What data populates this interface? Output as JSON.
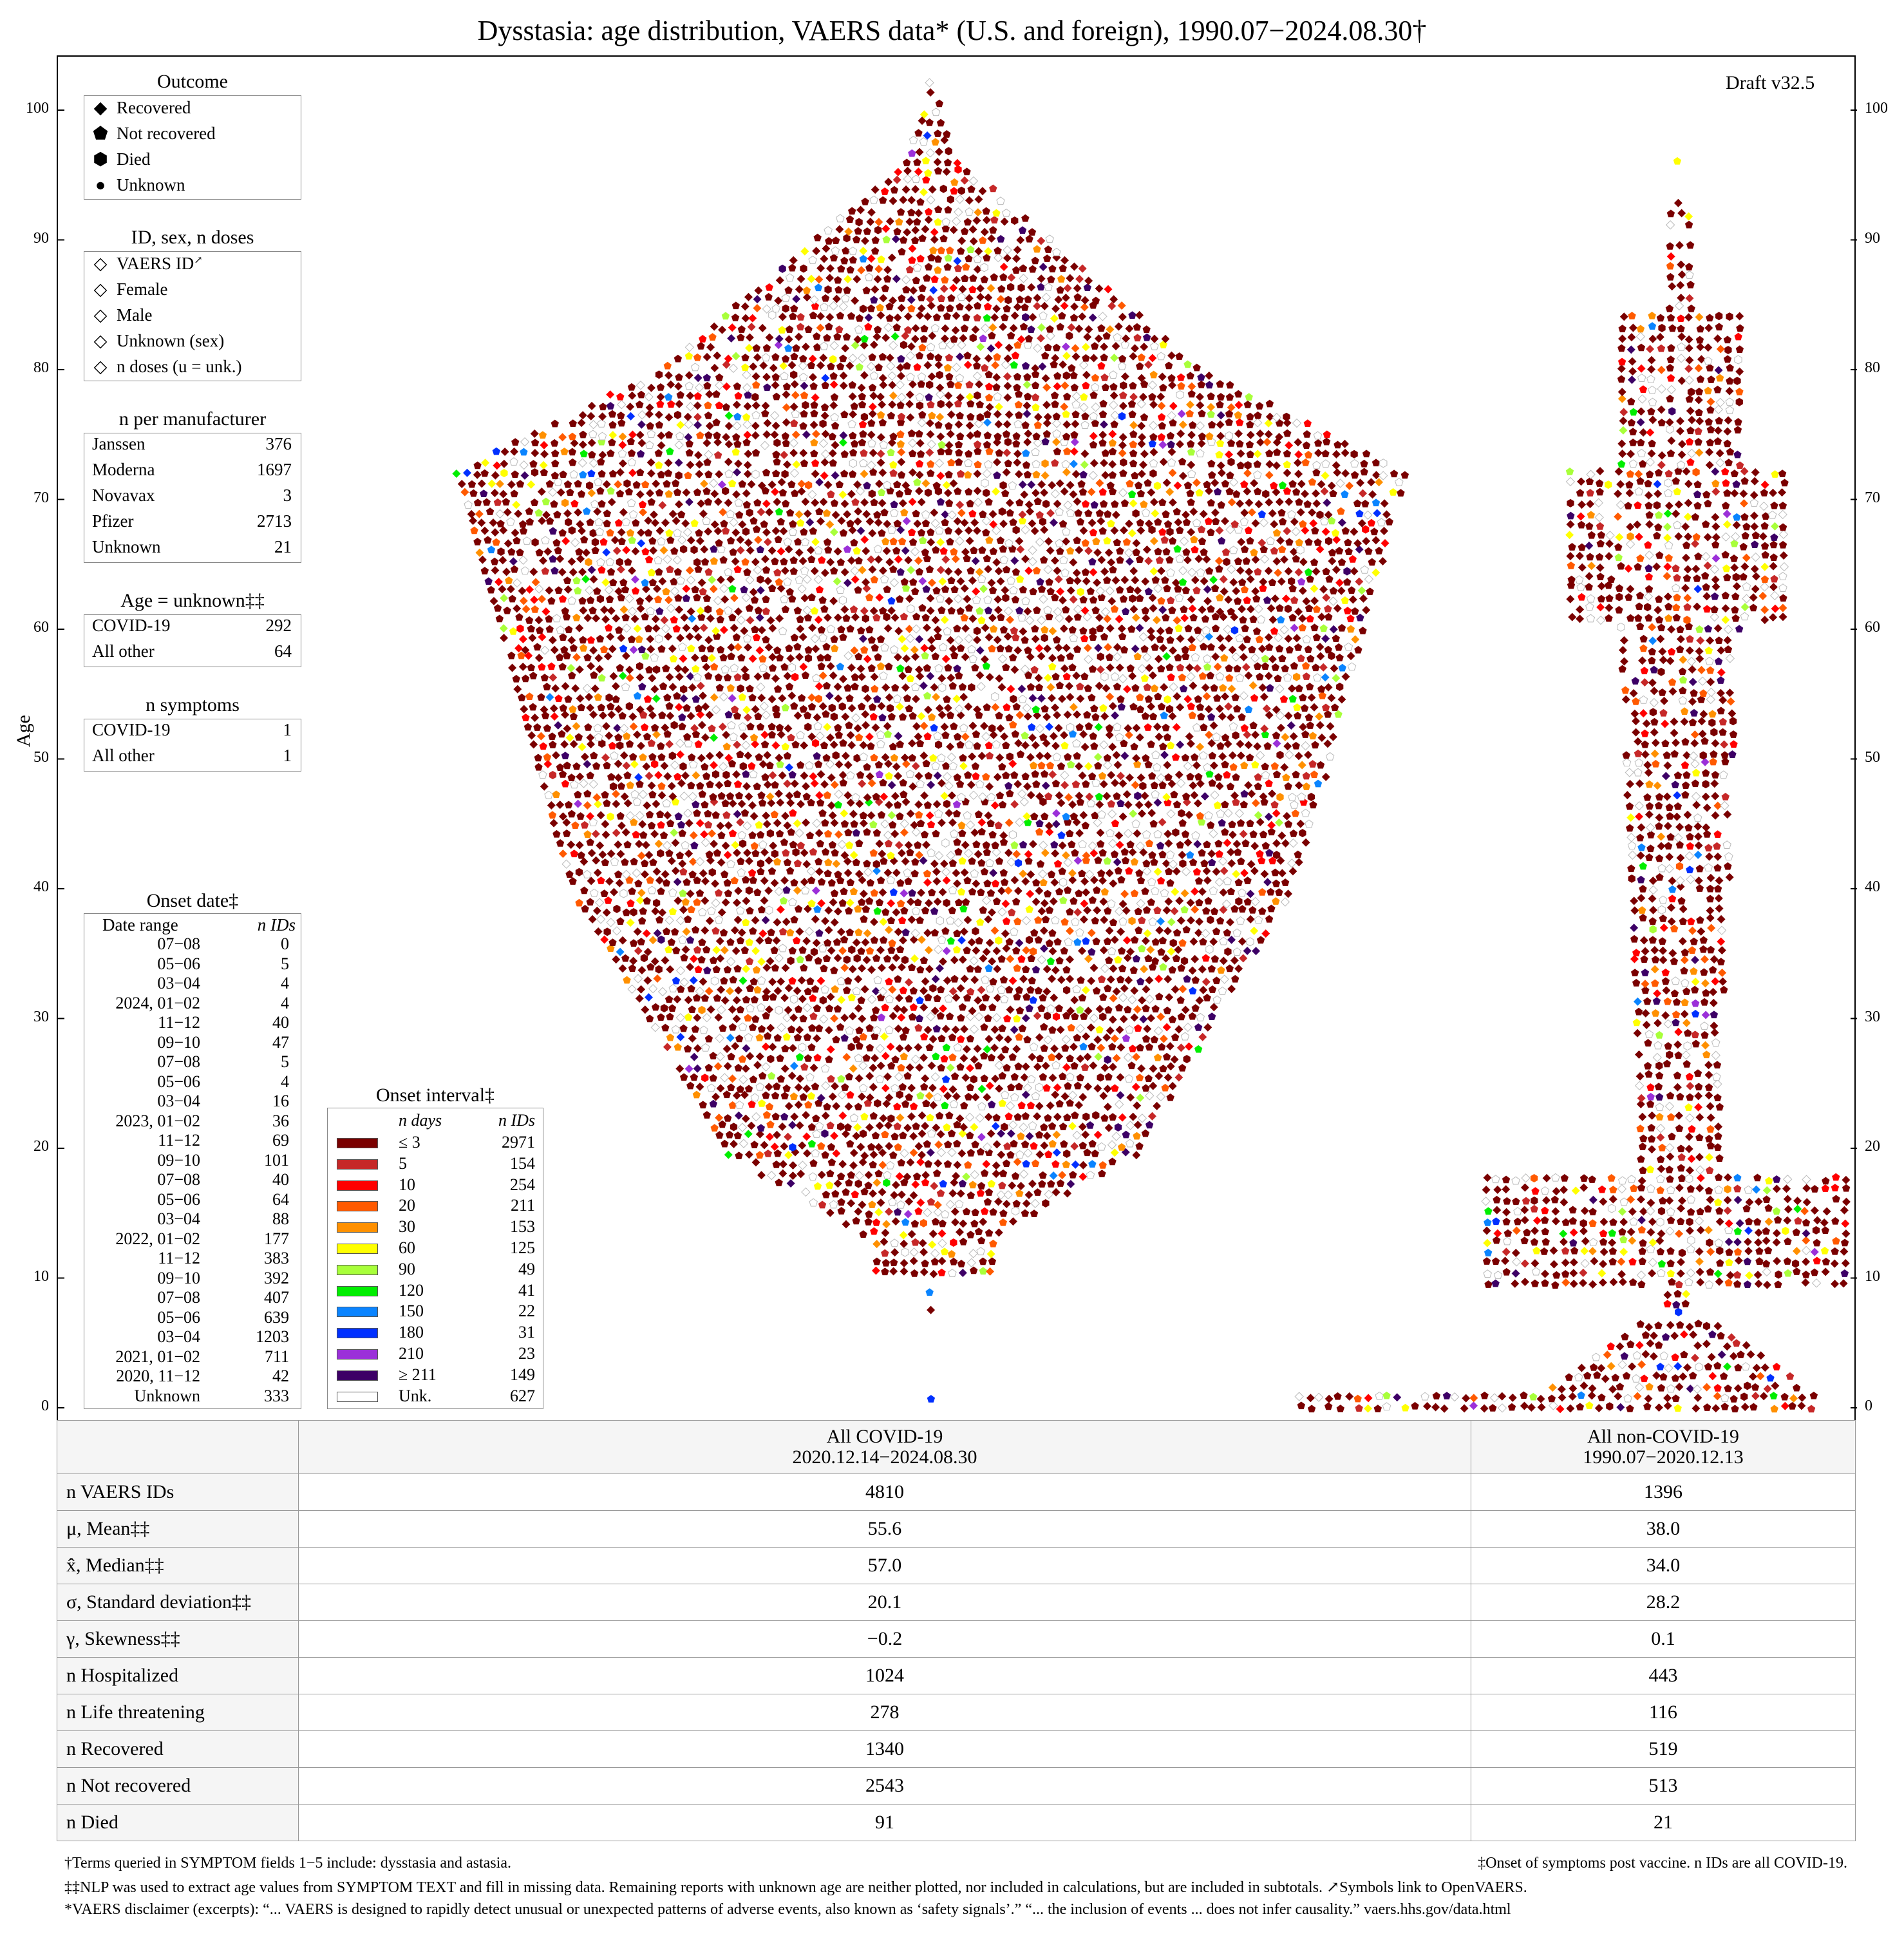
{
  "title": "Dysstasia: age distribution, VAERS data* (U.S. and foreign), 1990.07−2024.08.30†",
  "draft": "Draft v32.5",
  "y_axis_label": "Age",
  "chart_data": {
    "type": "scatter",
    "subtype": "beeswarm",
    "ylabel": "Age",
    "ylim": [
      0,
      104
    ],
    "yticks": [
      0,
      10,
      20,
      30,
      40,
      50,
      60,
      70,
      80,
      90,
      100
    ],
    "groups": [
      {
        "name": "All COVID-19",
        "n": 4810,
        "min_age": 0,
        "max_age": 102,
        "mean": 55.6,
        "median": 57.0,
        "sd": 20.1,
        "skew": -0.2
      },
      {
        "name": "All non-COVID-19",
        "n": 1396,
        "min_age": 0,
        "max_age": 99,
        "mean": 38.0,
        "median": 34.0,
        "sd": 28.2,
        "skew": 0.1
      }
    ],
    "color_key": "Onset interval (days)"
  },
  "legend": {
    "outcome": {
      "title": "Outcome",
      "items": [
        {
          "shape": "diamond",
          "label": "Recovered"
        },
        {
          "shape": "pentagon",
          "label": "Not recovered"
        },
        {
          "shape": "hexagon",
          "label": "Died"
        },
        {
          "shape": "circle",
          "label": "Unknown"
        }
      ]
    },
    "id_sex": {
      "title": "ID, sex, n doses",
      "items": [
        {
          "label": "VAERS ID",
          "mark": "↗"
        },
        {
          "label": "Female"
        },
        {
          "label": "Male"
        },
        {
          "label": "Unknown (sex)"
        },
        {
          "label": "n doses (u = unk.)"
        }
      ]
    },
    "manufacturer": {
      "title": "n per manufacturer",
      "rows": [
        {
          "name": "Janssen",
          "n": "376"
        },
        {
          "name": "Moderna",
          "n": "1697"
        },
        {
          "name": "Novavax",
          "n": "3"
        },
        {
          "name": "Pfizer",
          "n": "2713"
        },
        {
          "name": "Unknown",
          "n": "21"
        }
      ]
    },
    "age_unknown": {
      "title": "Age = unknown‡‡",
      "rows": [
        {
          "name": "COVID-19",
          "n": "292"
        },
        {
          "name": "All other",
          "n": "64"
        }
      ]
    },
    "n_symptoms": {
      "title": "n symptoms",
      "rows": [
        {
          "name": "COVID-19",
          "n": "1"
        },
        {
          "name": "All other",
          "n": "1"
        }
      ]
    },
    "onset_date": {
      "title": "Onset date‡",
      "col1": "Date range",
      "col2": "n IDs",
      "rows": [
        {
          "range": "07−08",
          "n": "0"
        },
        {
          "range": "05−06",
          "n": "5"
        },
        {
          "range": "03−04",
          "n": "4"
        },
        {
          "range": "2024, 01−02",
          "n": "4"
        },
        {
          "range": "11−12",
          "n": "40"
        },
        {
          "range": "09−10",
          "n": "47"
        },
        {
          "range": "07−08",
          "n": "5"
        },
        {
          "range": "05−06",
          "n": "4"
        },
        {
          "range": "03−04",
          "n": "16"
        },
        {
          "range": "2023, 01−02",
          "n": "36"
        },
        {
          "range": "11−12",
          "n": "69"
        },
        {
          "range": "09−10",
          "n": "101"
        },
        {
          "range": "07−08",
          "n": "40"
        },
        {
          "range": "05−06",
          "n": "64"
        },
        {
          "range": "03−04",
          "n": "88"
        },
        {
          "range": "2022, 01−02",
          "n": "177"
        },
        {
          "range": "11−12",
          "n": "383"
        },
        {
          "range": "09−10",
          "n": "392"
        },
        {
          "range": "07−08",
          "n": "407"
        },
        {
          "range": "05−06",
          "n": "639"
        },
        {
          "range": "03−04",
          "n": "1203"
        },
        {
          "range": "2021, 01−02",
          "n": "711"
        },
        {
          "range": "2020, 11−12",
          "n": "42"
        },
        {
          "range": "Unknown",
          "n": "333"
        }
      ]
    },
    "onset_interval": {
      "title": "Onset interval‡",
      "col1": "n days",
      "col2": "n IDs",
      "rows": [
        {
          "days": "≤ 3",
          "n": "2971",
          "color": "#7a0000"
        },
        {
          "days": "5",
          "n": "154",
          "color": "#c62828"
        },
        {
          "days": "10",
          "n": "254",
          "color": "#ff0000"
        },
        {
          "days": "20",
          "n": "211",
          "color": "#ff5a00"
        },
        {
          "days": "30",
          "n": "153",
          "color": "#ff9000"
        },
        {
          "days": "60",
          "n": "125",
          "color": "#ffff00"
        },
        {
          "days": "90",
          "n": "49",
          "color": "#a8ff3a"
        },
        {
          "days": "120",
          "n": "41",
          "color": "#00ee00"
        },
        {
          "days": "150",
          "n": "22",
          "color": "#0a84ff"
        },
        {
          "days": "180",
          "n": "31",
          "color": "#0030ff"
        },
        {
          "days": "210",
          "n": "23",
          "color": "#9b30d9"
        },
        {
          "days": "≥ 211",
          "n": "149",
          "color": "#3d0066"
        },
        {
          "days": "Unk.",
          "n": "627",
          "color": "#ffffff"
        }
      ]
    }
  },
  "stats_table": {
    "col1_header": "All COVID-19",
    "col1_dates": "2020.12.14−2024.08.30",
    "col2_header": "All non-COVID-19",
    "col2_dates": "1990.07−2020.12.13",
    "rows": [
      {
        "label": "n VAERS IDs",
        "c1": "4810",
        "c2": "1396"
      },
      {
        "label": "μ, Mean‡‡",
        "c1": "55.6",
        "c2": "38.0"
      },
      {
        "label": "x̂, Median‡‡",
        "c1": "57.0",
        "c2": "34.0"
      },
      {
        "label": "σ, Standard deviation‡‡",
        "c1": "20.1",
        "c2": "28.2"
      },
      {
        "label": "γ, Skewness‡‡",
        "c1": "−0.2",
        "c2": "0.1"
      },
      {
        "label": "n Hospitalized",
        "c1": "1024",
        "c2": "443"
      },
      {
        "label": "n Life threatening",
        "c1": "278",
        "c2": "116"
      },
      {
        "label": "n Recovered",
        "c1": "1340",
        "c2": "519"
      },
      {
        "label": "n Not recovered",
        "c1": "2543",
        "c2": "513"
      },
      {
        "label": "n Died",
        "c1": "91",
        "c2": "21"
      }
    ]
  },
  "footnotes": {
    "terms": "†Terms queried in SYMPTOM fields 1−5 include: dysstasia and astasia.",
    "onset": "‡Onset of symptoms post vaccine. n IDs are all COVID-19.",
    "nlp": "‡‡NLP was used to extract age values from SYMPTOM TEXT and fill in missing data. Remaining reports with unknown age are neither plotted, nor included in calculations, but are included in subtotals.  ↗Symbols link to OpenVAERS.",
    "disclaimer": "*VAERS disclaimer (excerpts): “... VAERS is designed to rapidly detect unusual or unexpected patterns of adverse events, also known as ‘safety signals’.” “... the inclusion of events ... does not infer causality.”    vaers.hhs.gov/data.html"
  }
}
